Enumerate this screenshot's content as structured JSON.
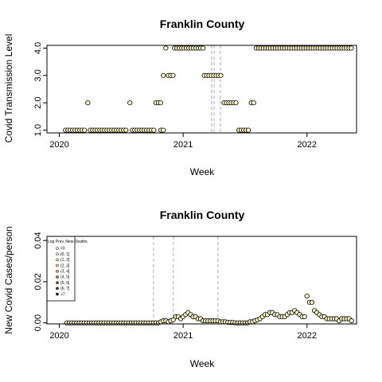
{
  "chart_data": [
    {
      "type": "scatter",
      "title": "Franklin County",
      "xlabel": "Week",
      "ylabel": "Covid Transmission Level",
      "xlim": [
        2019.9,
        2022.4
      ],
      "ylim": [
        0.9,
        4.1
      ],
      "x_ticks": [
        2020,
        2021,
        2022
      ],
      "x_tick_labels": [
        "2020",
        "2021",
        "2022"
      ],
      "y_ticks": [
        1,
        2,
        3,
        4
      ],
      "y_tick_labels": [
        "1.0",
        "2.0",
        "3.0",
        "4.0"
      ],
      "grid": false,
      "vertical_dashed_lines": [
        2021.23,
        2021.25,
        2021.3
      ],
      "segments": [
        {
          "x_start": 2020.05,
          "x_end": 2020.22,
          "y": 1
        },
        {
          "x_start": 2020.23,
          "x_end": 2020.23,
          "y": 2
        },
        {
          "x_start": 2020.25,
          "x_end": 2020.55,
          "y": 1
        },
        {
          "x_start": 2020.57,
          "x_end": 2020.57,
          "y": 2
        },
        {
          "x_start": 2020.59,
          "x_end": 2020.78,
          "y": 1
        },
        {
          "x_start": 2020.78,
          "x_end": 2020.82,
          "y": 2
        },
        {
          "x_start": 2020.82,
          "x_end": 2020.84,
          "y": 1
        },
        {
          "x_start": 2020.84,
          "x_end": 2020.84,
          "y": 3
        },
        {
          "x_start": 2020.86,
          "x_end": 2020.86,
          "y": 4
        },
        {
          "x_start": 2020.88,
          "x_end": 2020.92,
          "y": 3
        },
        {
          "x_start": 2020.93,
          "x_end": 2021.17,
          "y": 4
        },
        {
          "x_start": 2021.17,
          "x_end": 2021.31,
          "y": 3
        },
        {
          "x_start": 2021.33,
          "x_end": 2021.43,
          "y": 2
        },
        {
          "x_start": 2021.45,
          "x_end": 2021.53,
          "y": 1
        },
        {
          "x_start": 2021.55,
          "x_end": 2021.57,
          "y": 2
        },
        {
          "x_start": 2021.59,
          "x_end": 2022.36,
          "y": 4
        }
      ]
    },
    {
      "type": "scatter",
      "title": "Franklin County",
      "xlabel": "Week",
      "ylabel": "New Covid Cases/person",
      "xlim": [
        2019.9,
        2022.4
      ],
      "ylim": [
        -0.0005,
        0.042
      ],
      "x_ticks": [
        2020,
        2021,
        2022
      ],
      "x_tick_labels": [
        "2020",
        "2021",
        "2022"
      ],
      "y_ticks": [
        0.0,
        0.02,
        0.04
      ],
      "y_tick_labels": [
        "0.00",
        "0.02",
        "0.04"
      ],
      "grid": false,
      "vertical_dashed_lines": [
        2020.76,
        2020.92,
        2021.28
      ],
      "legend": {
        "title": "Log Prev. New Deaths",
        "position": "top-left",
        "entries": [
          "=0",
          "(0, 1]",
          "(1, 2]",
          "(2, 3]",
          "(3, 4]",
          "(4, 5]",
          "(5, 6]",
          "(6, 7]",
          ">7"
        ],
        "colors": [
          "#ffffff",
          "#fff7d4",
          "#fde9b0",
          "#f6d28b",
          "#e0a864",
          "#b9743e",
          "#8a4a22",
          "#52260e",
          "#000000"
        ]
      },
      "points": [
        [
          2020.06,
          0.0
        ],
        [
          2020.08,
          0.0
        ],
        [
          2020.1,
          0.0
        ],
        [
          2020.12,
          0.0
        ],
        [
          2020.14,
          0.0
        ],
        [
          2020.16,
          0.0
        ],
        [
          2020.18,
          0.0
        ],
        [
          2020.2,
          0.0
        ],
        [
          2020.22,
          0.0
        ],
        [
          2020.24,
          0.0
        ],
        [
          2020.26,
          0.0
        ],
        [
          2020.28,
          0.0
        ],
        [
          2020.3,
          0.0
        ],
        [
          2020.32,
          0.0
        ],
        [
          2020.34,
          0.0
        ],
        [
          2020.36,
          0.0
        ],
        [
          2020.38,
          0.0
        ],
        [
          2020.4,
          0.0
        ],
        [
          2020.42,
          0.0
        ],
        [
          2020.44,
          0.0
        ],
        [
          2020.46,
          0.0
        ],
        [
          2020.48,
          0.0
        ],
        [
          2020.5,
          0.0
        ],
        [
          2020.52,
          0.0
        ],
        [
          2020.54,
          0.0
        ],
        [
          2020.56,
          0.0
        ],
        [
          2020.58,
          0.0
        ],
        [
          2020.6,
          0.0
        ],
        [
          2020.62,
          0.0
        ],
        [
          2020.64,
          0.0
        ],
        [
          2020.66,
          0.0
        ],
        [
          2020.68,
          0.0
        ],
        [
          2020.7,
          0.0
        ],
        [
          2020.72,
          0.0
        ],
        [
          2020.74,
          0.0
        ],
        [
          2020.76,
          0.0
        ],
        [
          2020.78,
          0.0
        ],
        [
          2020.8,
          0.0
        ],
        [
          2020.82,
          0.0005
        ],
        [
          2020.84,
          0.001
        ],
        [
          2020.86,
          0.001
        ],
        [
          2020.88,
          0.0005
        ],
        [
          2020.9,
          0.001
        ],
        [
          2020.92,
          0.0015
        ],
        [
          2020.94,
          0.003
        ],
        [
          2020.96,
          0.003
        ],
        [
          2020.98,
          0.002
        ],
        [
          2021.0,
          0.003
        ],
        [
          2021.02,
          0.004
        ],
        [
          2021.04,
          0.005
        ],
        [
          2021.06,
          0.004
        ],
        [
          2021.08,
          0.003
        ],
        [
          2021.1,
          0.003
        ],
        [
          2021.12,
          0.002
        ],
        [
          2021.14,
          0.002
        ],
        [
          2021.16,
          0.001
        ],
        [
          2021.18,
          0.001
        ],
        [
          2021.2,
          0.001
        ],
        [
          2021.22,
          0.001
        ],
        [
          2021.24,
          0.001
        ],
        [
          2021.26,
          0.001
        ],
        [
          2021.28,
          0.001
        ],
        [
          2021.3,
          0.0005
        ],
        [
          2021.32,
          0.0005
        ],
        [
          2021.34,
          0.0005
        ],
        [
          2021.36,
          0.0003
        ],
        [
          2021.38,
          0.0002
        ],
        [
          2021.4,
          0.0002
        ],
        [
          2021.42,
          0.0
        ],
        [
          2021.44,
          0.0
        ],
        [
          2021.46,
          0.0
        ],
        [
          2021.48,
          0.0
        ],
        [
          2021.5,
          0.0
        ],
        [
          2021.52,
          0.0
        ],
        [
          2021.54,
          0.0005
        ],
        [
          2021.56,
          0.0005
        ],
        [
          2021.58,
          0.001
        ],
        [
          2021.6,
          0.0015
        ],
        [
          2021.62,
          0.002
        ],
        [
          2021.64,
          0.003
        ],
        [
          2021.66,
          0.004
        ],
        [
          2021.68,
          0.004
        ],
        [
          2021.7,
          0.005
        ],
        [
          2021.72,
          0.005
        ],
        [
          2021.74,
          0.004
        ],
        [
          2021.76,
          0.004
        ],
        [
          2021.78,
          0.003
        ],
        [
          2021.8,
          0.003
        ],
        [
          2021.82,
          0.003
        ],
        [
          2021.84,
          0.004
        ],
        [
          2021.86,
          0.005
        ],
        [
          2021.88,
          0.005
        ],
        [
          2021.9,
          0.006
        ],
        [
          2021.92,
          0.005
        ],
        [
          2021.94,
          0.004
        ],
        [
          2021.96,
          0.003
        ],
        [
          2021.98,
          0.003
        ],
        [
          2022.0,
          0.013
        ],
        [
          2022.02,
          0.01
        ],
        [
          2022.04,
          0.01
        ],
        [
          2022.06,
          0.006
        ],
        [
          2022.08,
          0.005
        ],
        [
          2022.1,
          0.004
        ],
        [
          2022.12,
          0.003
        ],
        [
          2022.14,
          0.003
        ],
        [
          2022.16,
          0.002
        ],
        [
          2022.18,
          0.002
        ],
        [
          2022.2,
          0.002
        ],
        [
          2022.22,
          0.002
        ],
        [
          2022.24,
          0.002
        ],
        [
          2022.26,
          0.001
        ],
        [
          2022.28,
          0.002
        ],
        [
          2022.3,
          0.002
        ],
        [
          2022.32,
          0.002
        ],
        [
          2022.34,
          0.002
        ],
        [
          2022.36,
          0.001
        ]
      ]
    }
  ]
}
